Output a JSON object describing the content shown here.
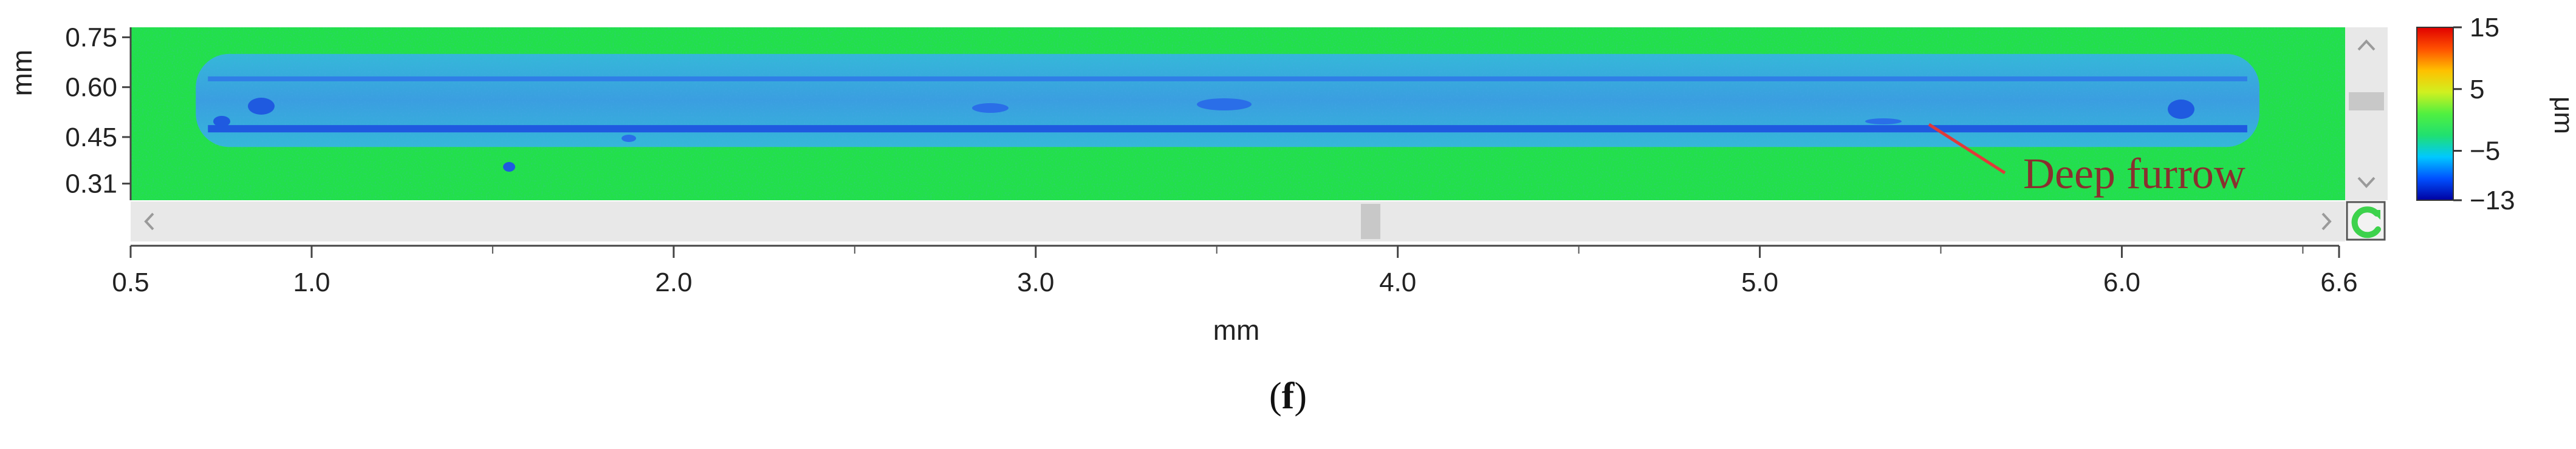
{
  "caption": {
    "open": "(",
    "letter": "f",
    "close": ")"
  },
  "colors": {
    "plot_background": "#22e04a",
    "channel": "#3ab0d0",
    "furrow": "#1f5ae0",
    "annotation": "#e03a3a",
    "scroll_track": "#e8e8e8",
    "scroll_thumb": "#c8c8c8",
    "refresh_icon": "#3dd24c"
  },
  "icons": [
    "chevron-up-icon",
    "chevron-down-icon",
    "chevron-left-icon",
    "chevron-right-icon",
    "refresh-icon"
  ],
  "chart_data": {
    "type": "heatmap",
    "title": "",
    "xlabel": "mm",
    "ylabel": "mm",
    "colorbar_label": "μm",
    "xlim": [
      0.5,
      6.6
    ],
    "ylim": [
      0.26,
      0.78
    ],
    "x_ticks": [
      0.5,
      1.0,
      2.0,
      3.0,
      4.0,
      5.0,
      6.0,
      6.6
    ],
    "x_tick_labels": [
      "0.5",
      "1.0",
      "2.0",
      "3.0",
      "4.0",
      "5.0",
      "6.0",
      "6.6"
    ],
    "y_ticks": [
      0.75,
      0.6,
      0.45,
      0.31
    ],
    "y_tick_labels": [
      "0.75",
      "0.60",
      "0.45",
      "0.31"
    ],
    "colorbar_range": [
      -13,
      15
    ],
    "colorbar_ticks": [
      15,
      5,
      -5,
      -13
    ],
    "colorbar_tick_labels": [
      "15",
      "5",
      "−5",
      "−13"
    ],
    "colormap": [
      "#0000a0",
      "#0050ff",
      "#00c8ff",
      "#20e070",
      "#50f040",
      "#d0f020",
      "#ffc000",
      "#ff5000",
      "#e00000"
    ],
    "annotation": {
      "text": "Deep furrow",
      "x": 5.5,
      "y": 0.47
    },
    "features": {
      "channel": {
        "x_start": 0.68,
        "x_end": 6.38,
        "y_low": 0.42,
        "y_high": 0.7
      },
      "furrow_upper": {
        "y": 0.625
      },
      "furrow_lower": {
        "y": 0.475
      }
    }
  }
}
